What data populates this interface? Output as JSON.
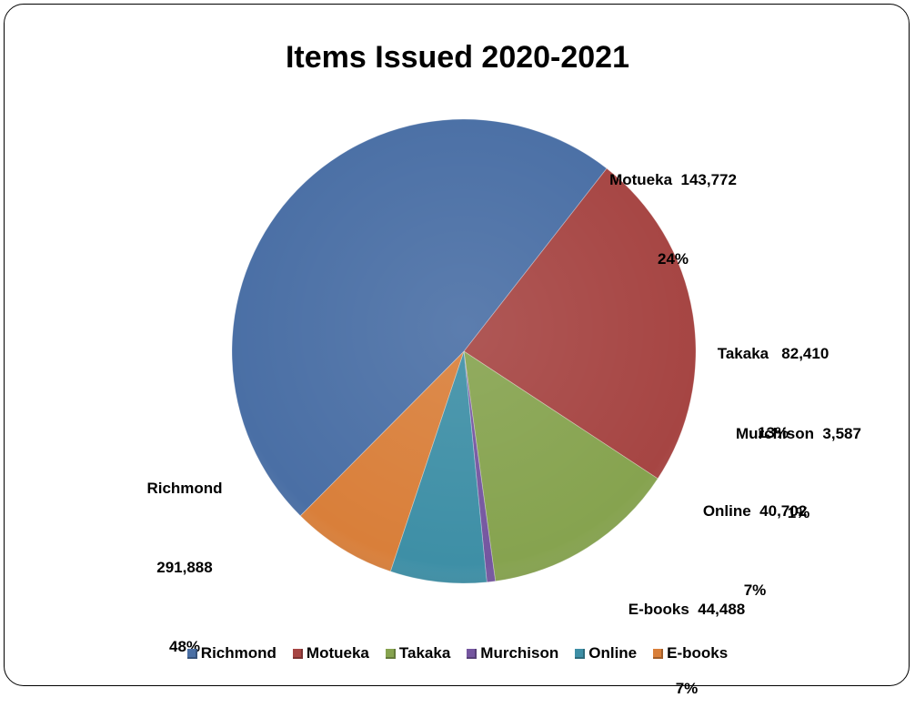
{
  "chart_data": {
    "type": "pie",
    "title": "Items Issued 2020-2021",
    "legend_position": "bottom",
    "slices": [
      {
        "name": "Richmond",
        "value": 291888,
        "value_label": "291,888",
        "percent_label": "48%",
        "color": "#4A6FA5"
      },
      {
        "name": "Motueka",
        "value": 143772,
        "value_label": "143,772",
        "percent_label": "24%",
        "color": "#A64543"
      },
      {
        "name": "Takaka",
        "value": 82410,
        "value_label": "82,410",
        "percent_label": "13%",
        "color": "#86A34F"
      },
      {
        "name": "Murchison",
        "value": 3587,
        "value_label": "3,587",
        "percent_label": "1%",
        "color": "#7556A0"
      },
      {
        "name": "Online",
        "value": 40702,
        "value_label": "40,702",
        "percent_label": "7%",
        "color": "#3E8FA6"
      },
      {
        "name": "E-books",
        "value": 44488,
        "value_label": "44,488",
        "percent_label": "7%",
        "color": "#D97F3A"
      }
    ]
  }
}
